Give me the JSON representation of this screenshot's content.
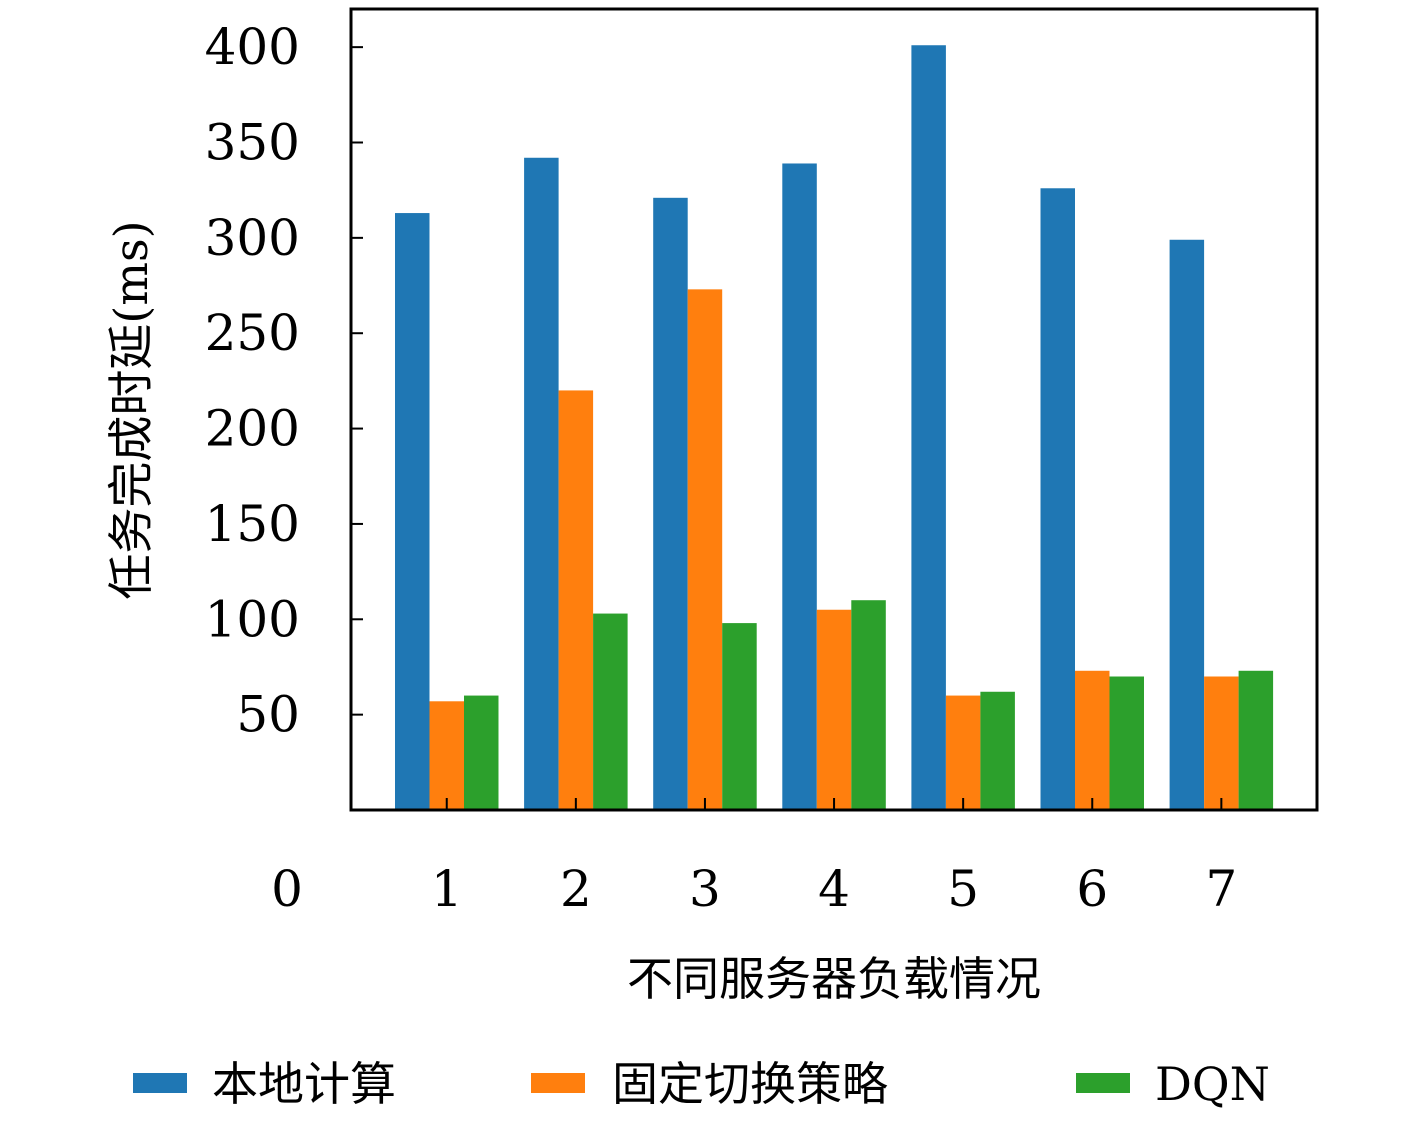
{
  "chart_data": {
    "type": "bar",
    "xlabel": "不同服务器负载情况",
    "ylabel": "任务完成时延(ms)",
    "categories": [
      "1",
      "2",
      "3",
      "4",
      "5",
      "6",
      "7"
    ],
    "x_axis_extra_tick": "0",
    "yticks": [
      50,
      100,
      150,
      200,
      250,
      300,
      350,
      400
    ],
    "ylim": [
      0,
      420
    ],
    "legend_position": "bottom",
    "series": [
      {
        "name": "本地计算",
        "color": "#1f77b4",
        "values": [
          313,
          342,
          321,
          339,
          401,
          326,
          299
        ]
      },
      {
        "name": "固定切换策略",
        "color": "#ff7f0e",
        "values": [
          57,
          220,
          273,
          105,
          60,
          73,
          70
        ]
      },
      {
        "name": "DQN",
        "color": "#2ca02c",
        "values": [
          60,
          103,
          98,
          110,
          62,
          70,
          73
        ]
      }
    ]
  }
}
